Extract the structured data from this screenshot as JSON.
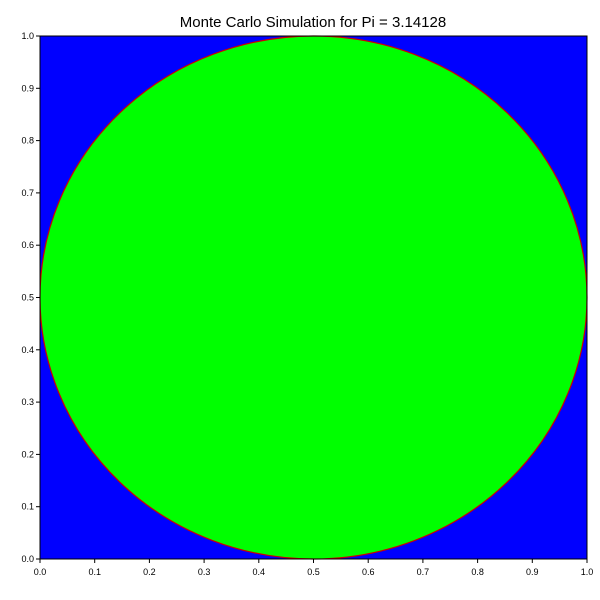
{
  "chart_data": {
    "type": "scatter",
    "title": "Monte Carlo Simulation for Pi = 3.14128",
    "xlabel": "",
    "ylabel": "",
    "xlim": [
      0.0,
      1.0
    ],
    "ylim": [
      0.0,
      1.0
    ],
    "grid": false,
    "x_ticks": [
      "0.0",
      "0.1",
      "0.2",
      "0.3",
      "0.4",
      "0.5",
      "0.6",
      "0.7",
      "0.8",
      "0.9",
      "1.0"
    ],
    "y_ticks": [
      "0.0",
      "0.1",
      "0.2",
      "0.3",
      "0.4",
      "0.5",
      "0.6",
      "0.7",
      "0.8",
      "0.9",
      "1.0"
    ],
    "circle": {
      "center": [
        0.5,
        0.5
      ],
      "radius": 0.5,
      "edge_color": "#cc0000"
    },
    "regions": {
      "inside_color": "#00ff00",
      "outside_color": "#0000ff"
    },
    "pi_estimate": 3.14128
  }
}
